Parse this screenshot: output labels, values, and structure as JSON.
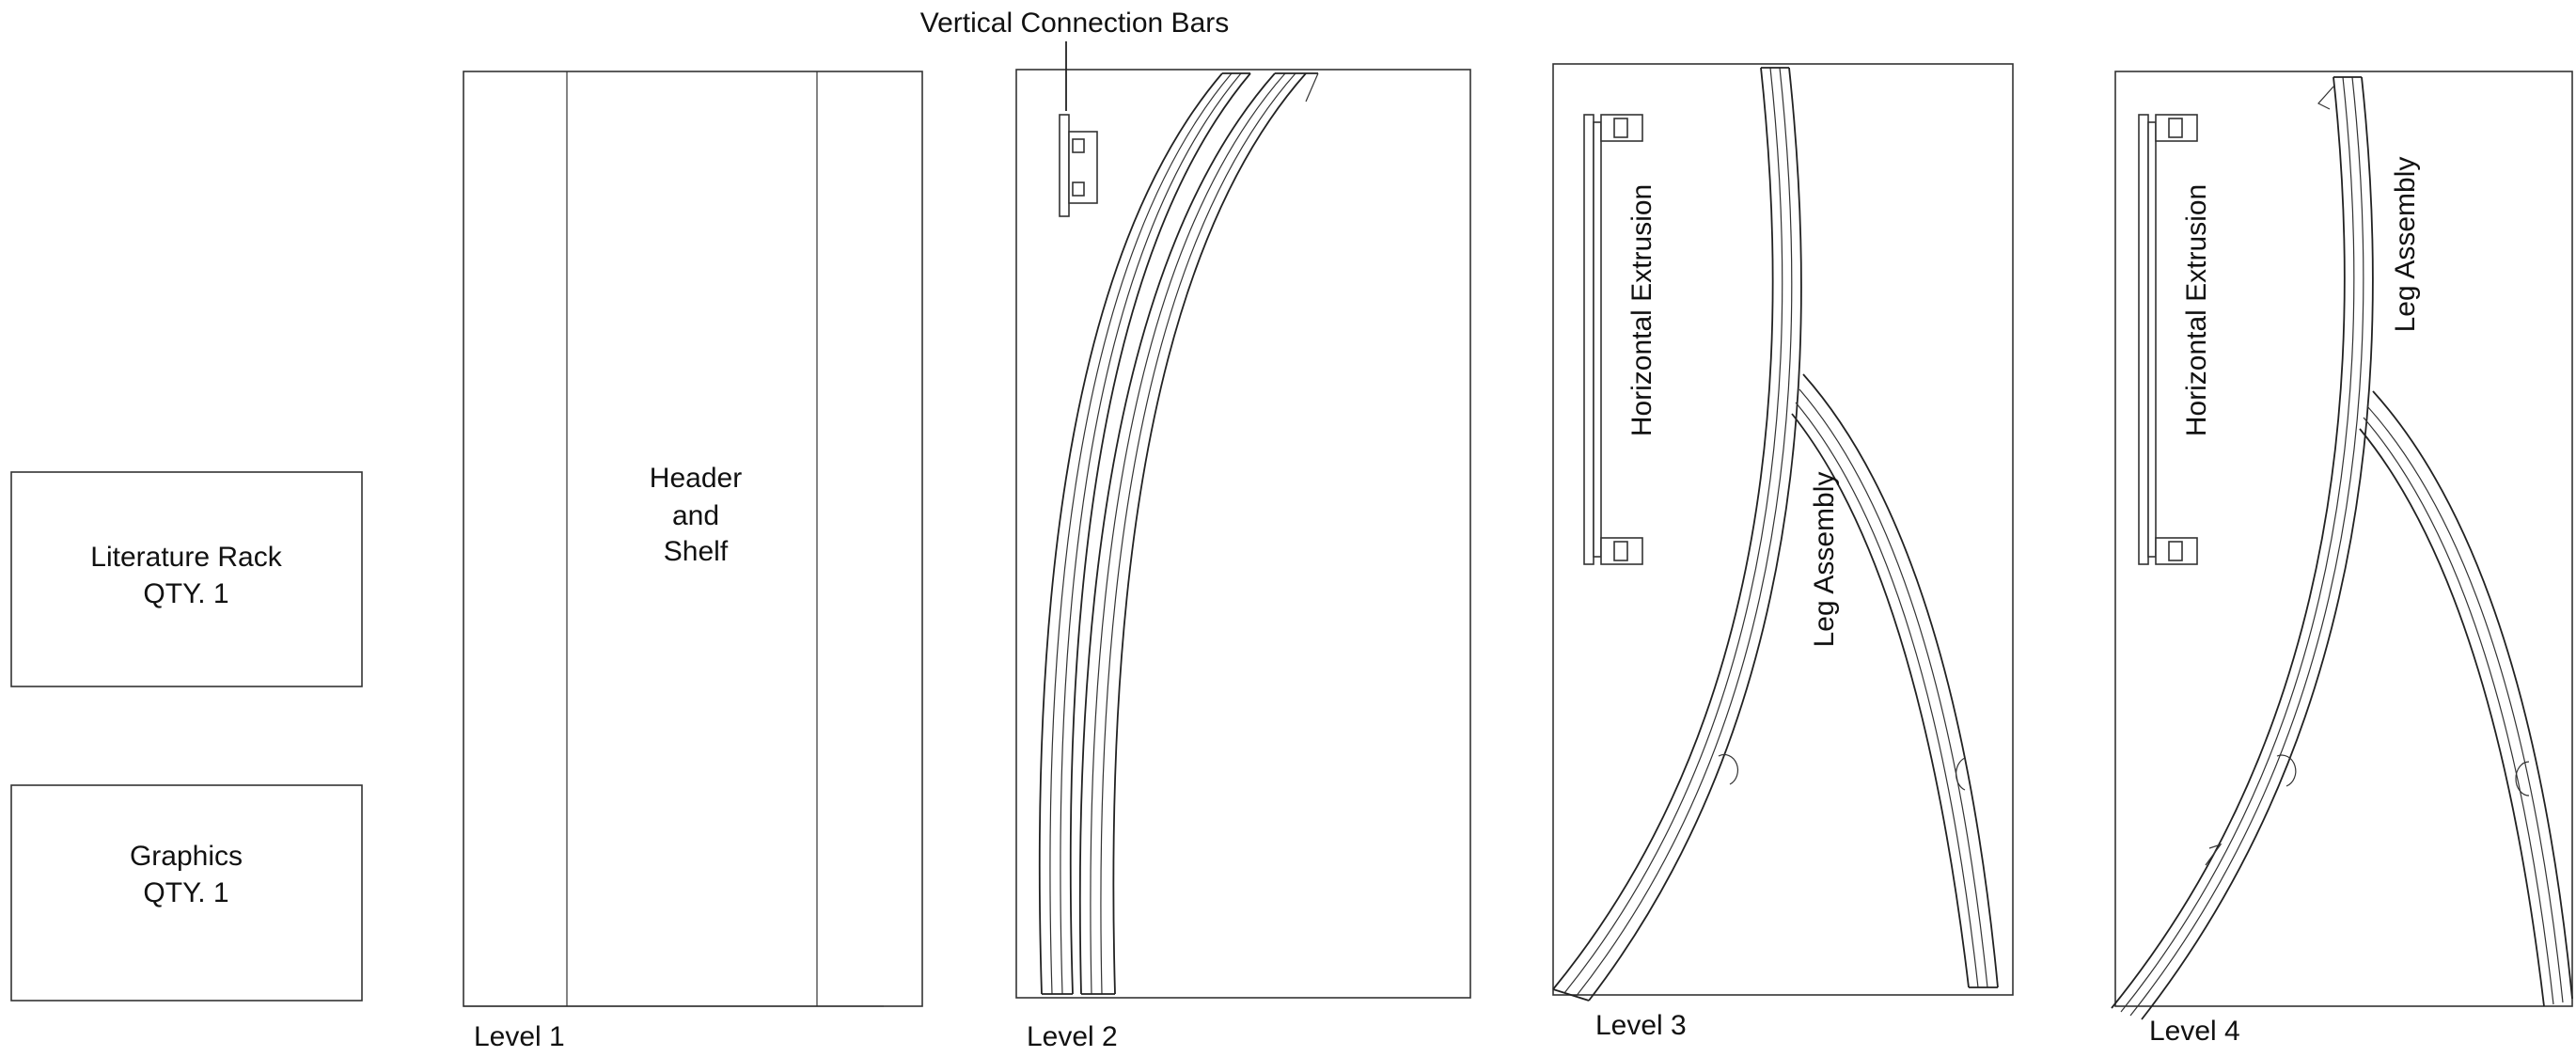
{
  "boxes": {
    "literature_rack": {
      "line1": "Literature Rack",
      "line2": "QTY. 1"
    },
    "graphics": {
      "line1": "Graphics",
      "line2": "QTY. 1"
    }
  },
  "level1": {
    "caption": "Level 1",
    "center_label": [
      "Header",
      "and",
      "Shelf"
    ]
  },
  "level2": {
    "caption": "Level 2",
    "callout": "Vertical Connection Bars"
  },
  "level3": {
    "caption": "Level 3",
    "extrusion_label": "Horizontal Extrusion",
    "leg_label": "Leg Assembly"
  },
  "level4": {
    "caption": "Level 4",
    "extrusion_label": "Horizontal Extrusion",
    "leg_label": "Leg Assembly"
  }
}
